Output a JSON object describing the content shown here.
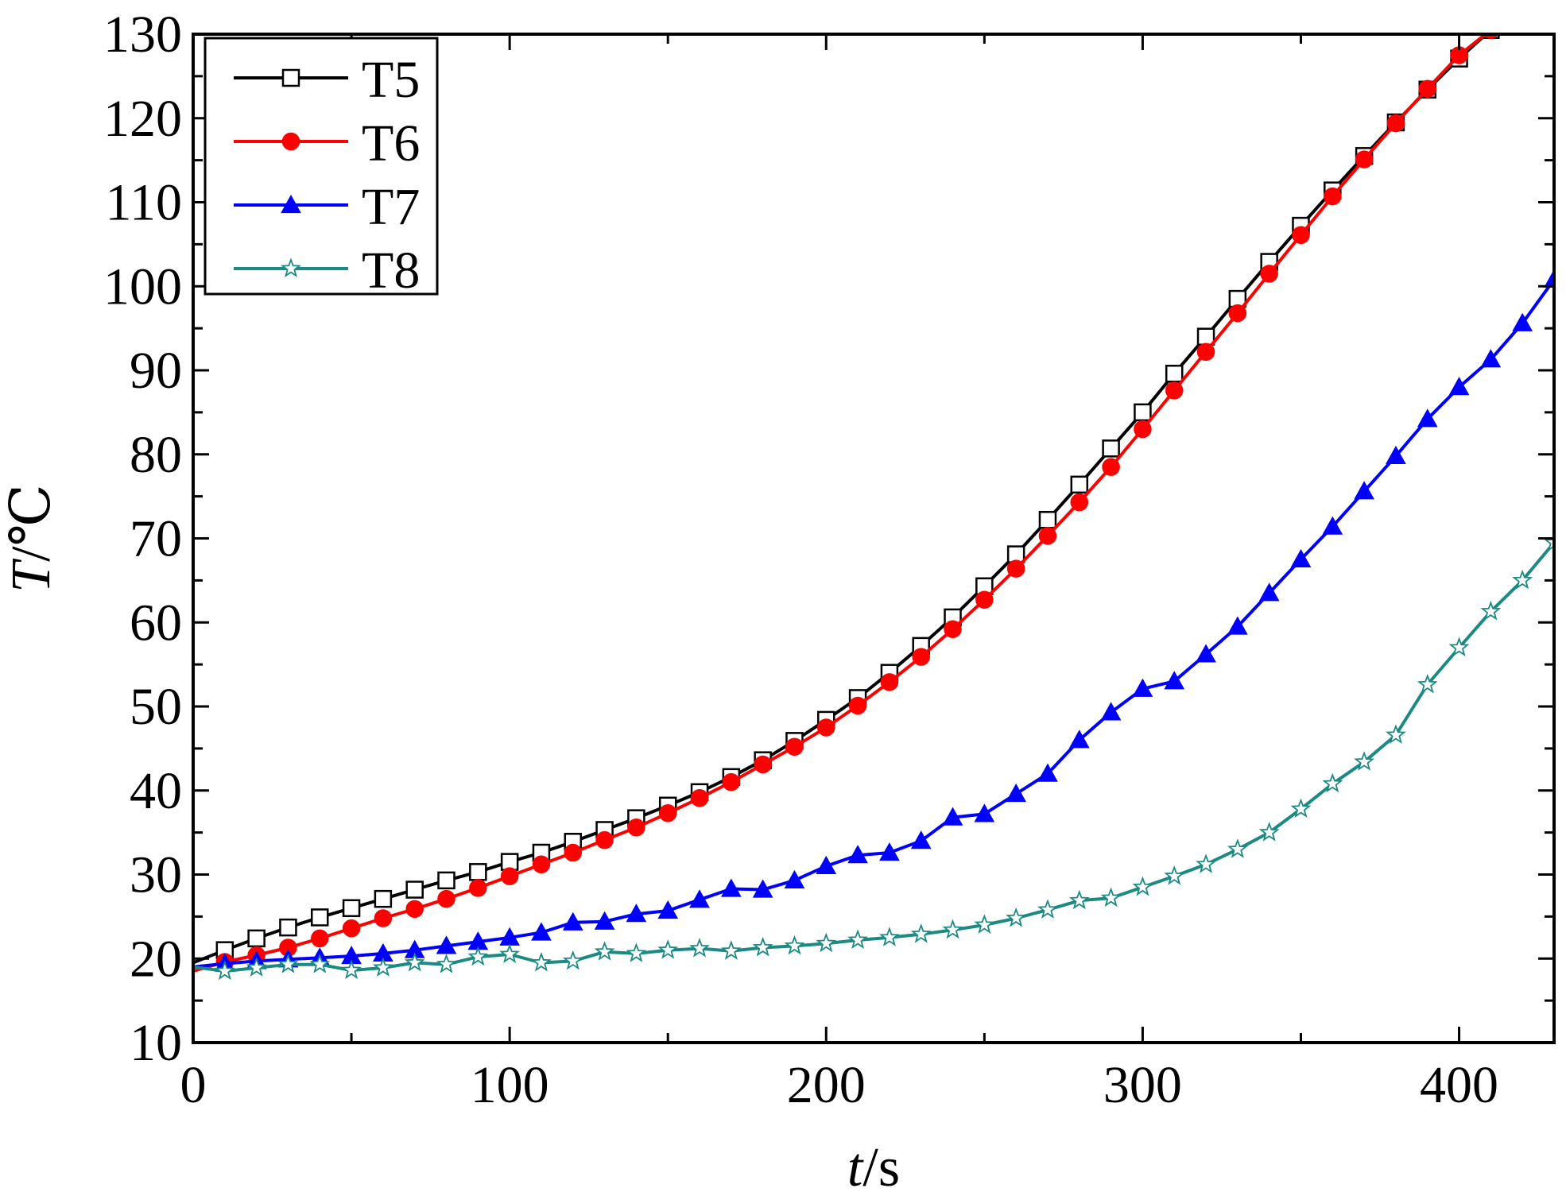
{
  "chart_data": {
    "type": "line",
    "title": "",
    "xlabel": {
      "italic": "t",
      "rest": "/s"
    },
    "ylabel": {
      "italic": "T",
      "rest": "/℃"
    },
    "xlim": [
      0,
      430
    ],
    "ylim": [
      10,
      130
    ],
    "xticks": [
      0,
      100,
      200,
      300,
      400
    ],
    "yticks": [
      10,
      20,
      30,
      40,
      50,
      60,
      70,
      80,
      90,
      100,
      110,
      120,
      130
    ],
    "grid": false,
    "legend_position": "top-left",
    "series": [
      {
        "name": "T5",
        "color": "#000000",
        "marker": "open-square",
        "x": [
          0,
          10,
          20,
          30,
          40,
          50,
          60,
          70,
          80,
          90,
          100,
          110,
          120,
          130,
          140,
          150,
          160,
          170,
          180,
          190,
          200,
          210,
          220,
          230,
          240,
          250,
          260,
          270,
          280,
          290,
          300,
          310,
          320,
          330,
          340,
          350,
          360,
          370,
          380,
          390,
          400,
          410
        ],
        "y": [
          19.5,
          21.0,
          22.4,
          23.7,
          24.9,
          26.0,
          27.1,
          28.2,
          29.3,
          30.3,
          31.5,
          32.6,
          33.9,
          35.3,
          36.7,
          38.2,
          39.8,
          41.6,
          43.6,
          45.9,
          48.4,
          51.0,
          54.0,
          57.2,
          60.6,
          64.3,
          68.1,
          72.2,
          76.4,
          80.7,
          85.0,
          89.6,
          94.0,
          98.5,
          102.9,
          107.2,
          111.4,
          115.5,
          119.5,
          123.4,
          127.1,
          130.5
        ]
      },
      {
        "name": "T6",
        "color": "#ff0000",
        "marker": "filled-circle",
        "x": [
          0,
          10,
          20,
          30,
          40,
          50,
          60,
          70,
          80,
          90,
          100,
          110,
          120,
          130,
          140,
          150,
          160,
          170,
          180,
          190,
          200,
          210,
          220,
          230,
          240,
          250,
          260,
          270,
          280,
          290,
          300,
          310,
          320,
          330,
          340,
          350,
          360,
          370,
          380,
          390,
          400,
          410
        ],
        "y": [
          18.5,
          19.6,
          20.4,
          21.3,
          22.4,
          23.6,
          24.8,
          25.9,
          27.1,
          28.4,
          29.8,
          31.2,
          32.6,
          34.1,
          35.6,
          37.3,
          39.1,
          41.0,
          43.1,
          45.2,
          47.5,
          50.1,
          52.9,
          55.9,
          59.2,
          62.7,
          66.4,
          70.3,
          74.3,
          78.5,
          83.0,
          87.6,
          92.2,
          96.8,
          101.5,
          106.1,
          110.7,
          115.1,
          119.4,
          123.5,
          127.5,
          130.5
        ]
      },
      {
        "name": "T7",
        "color": "#0000ff",
        "marker": "filled-triangle",
        "x": [
          0,
          10,
          20,
          30,
          40,
          50,
          60,
          70,
          80,
          90,
          100,
          110,
          120,
          130,
          140,
          150,
          160,
          170,
          180,
          190,
          200,
          210,
          220,
          230,
          240,
          250,
          260,
          270,
          280,
          290,
          300,
          310,
          320,
          330,
          340,
          350,
          360,
          370,
          380,
          390,
          400,
          410,
          420,
          430
        ],
        "y": [
          19.0,
          19.4,
          19.7,
          19.9,
          20.1,
          20.3,
          20.6,
          21.0,
          21.5,
          22.0,
          22.5,
          23.1,
          24.3,
          24.4,
          25.3,
          25.7,
          27.0,
          28.3,
          28.2,
          29.3,
          31.0,
          32.3,
          32.6,
          34.0,
          36.8,
          37.2,
          39.6,
          42.0,
          46.0,
          49.3,
          52.1,
          53.0,
          56.2,
          59.5,
          63.5,
          67.5,
          71.4,
          75.6,
          79.8,
          84.2,
          88.0,
          91.3,
          95.6,
          100.8
        ]
      },
      {
        "name": "T8",
        "color": "#1a8a82",
        "marker": "open-star",
        "x": [
          0,
          10,
          20,
          30,
          40,
          50,
          60,
          70,
          80,
          90,
          100,
          110,
          120,
          130,
          140,
          150,
          160,
          170,
          180,
          190,
          200,
          210,
          220,
          230,
          240,
          250,
          260,
          270,
          280,
          290,
          300,
          310,
          320,
          330,
          340,
          350,
          360,
          370,
          380,
          390,
          400,
          410,
          420,
          430
        ],
        "y": [
          19.0,
          18.5,
          18.9,
          19.3,
          19.3,
          18.6,
          18.9,
          19.5,
          19.3,
          20.2,
          20.5,
          19.5,
          19.7,
          20.8,
          20.6,
          21.0,
          21.2,
          20.9,
          21.3,
          21.5,
          21.8,
          22.2,
          22.5,
          22.9,
          23.4,
          24.0,
          24.8,
          25.8,
          26.9,
          27.2,
          28.5,
          29.8,
          31.2,
          33.0,
          35.0,
          37.8,
          40.8,
          43.4,
          46.6,
          52.6,
          57.0,
          61.3,
          65.0,
          69.5
        ]
      }
    ]
  }
}
